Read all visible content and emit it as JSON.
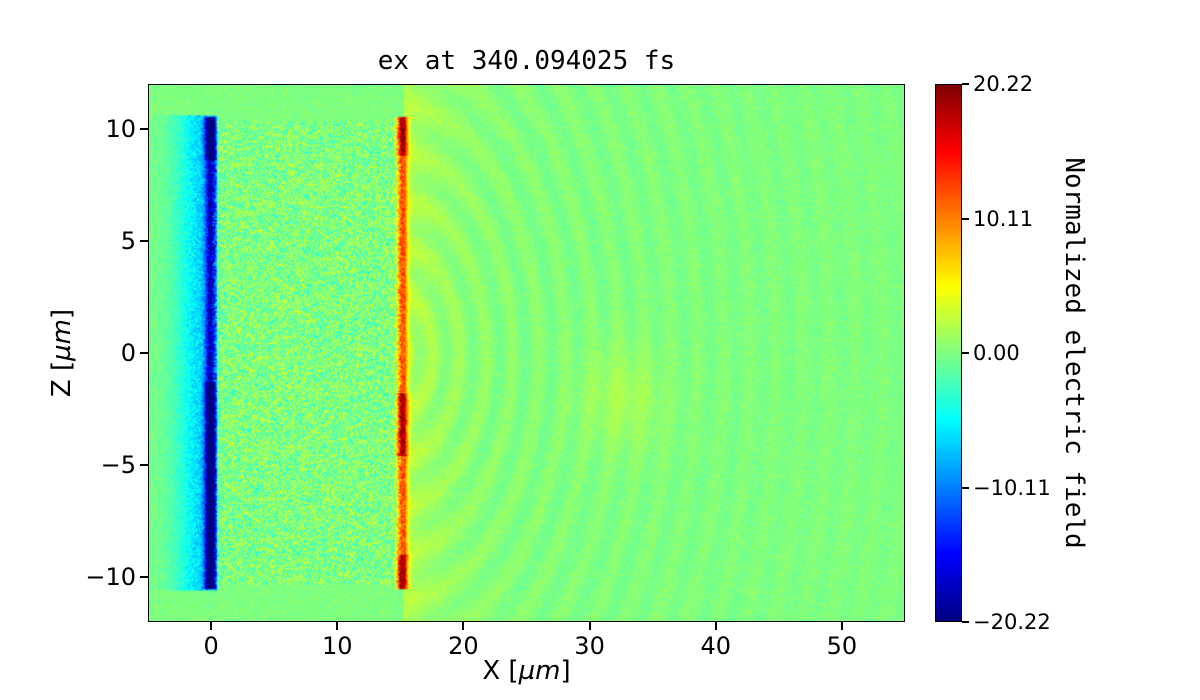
{
  "chart_data": {
    "type": "heatmap",
    "title": "ex at 340.094025 fs",
    "xlabel_parts": {
      "prefix": "X [",
      "math": "µm",
      "suffix": "]"
    },
    "ylabel_parts": {
      "prefix": "Z [",
      "math": "µm",
      "suffix": "]"
    },
    "xlim": [
      -5,
      55
    ],
    "zlim": [
      -12,
      12
    ],
    "xticks": {
      "values": [
        0,
        10,
        20,
        30,
        40,
        50
      ],
      "labels": [
        "0",
        "10",
        "20",
        "30",
        "40",
        "50"
      ]
    },
    "yticks": {
      "values": [
        10,
        5,
        0,
        -5,
        -10
      ],
      "labels": [
        "10",
        "5",
        "0",
        "−5",
        "−10"
      ]
    },
    "colormap": "jet",
    "vmin": -20.22,
    "vmax": 20.22,
    "colorbar": {
      "label": "Normalized electric field",
      "ticks": {
        "values": [
          20.22,
          10.11,
          0,
          -10.11,
          -20.22
        ],
        "labels": [
          "20.22",
          "10.11",
          "0.00",
          "−10.11",
          "−20.22"
        ]
      }
    },
    "features": {
      "noise_seed": 1337,
      "background_value": 0,
      "background_noise": 0.9,
      "plasma_region": {
        "x": [
          0,
          15
        ],
        "z": [
          -10.3,
          10.3
        ],
        "noise": 3.6
      },
      "negative_sheath": {
        "x0": -0.05,
        "sigma": 0.28,
        "zmin": -10.5,
        "zmax": 10.5,
        "peak": -20,
        "base": 0.55,
        "dark_segments": [
          [
            8.6,
            10.5
          ],
          [
            -10.5,
            -1.3
          ]
        ]
      },
      "positive_sheath": {
        "x0": 15.15,
        "sigma": 0.28,
        "zmin": -10.5,
        "zmax": 10.5,
        "peak": 20,
        "base": 0.6,
        "dark_segments": [
          [
            8.8,
            10.5
          ],
          [
            -4.6,
            -1.8
          ],
          [
            -10.5,
            -9.0
          ]
        ]
      },
      "left_glow": {
        "center": 0.0,
        "falloff": 7,
        "value": -7.5,
        "zmax": 10.6
      },
      "right_band": {
        "start": 15.3,
        "falloff": 3.5,
        "value": 2.2
      },
      "warm_blob": {
        "x": 32.5,
        "z": -2,
        "sx": 10,
        "sz": 5,
        "value": 1.6
      },
      "ripples": {
        "cx": 15,
        "cz": 0,
        "k": 3.0,
        "amp": 0.9,
        "decay": 28
      }
    }
  }
}
